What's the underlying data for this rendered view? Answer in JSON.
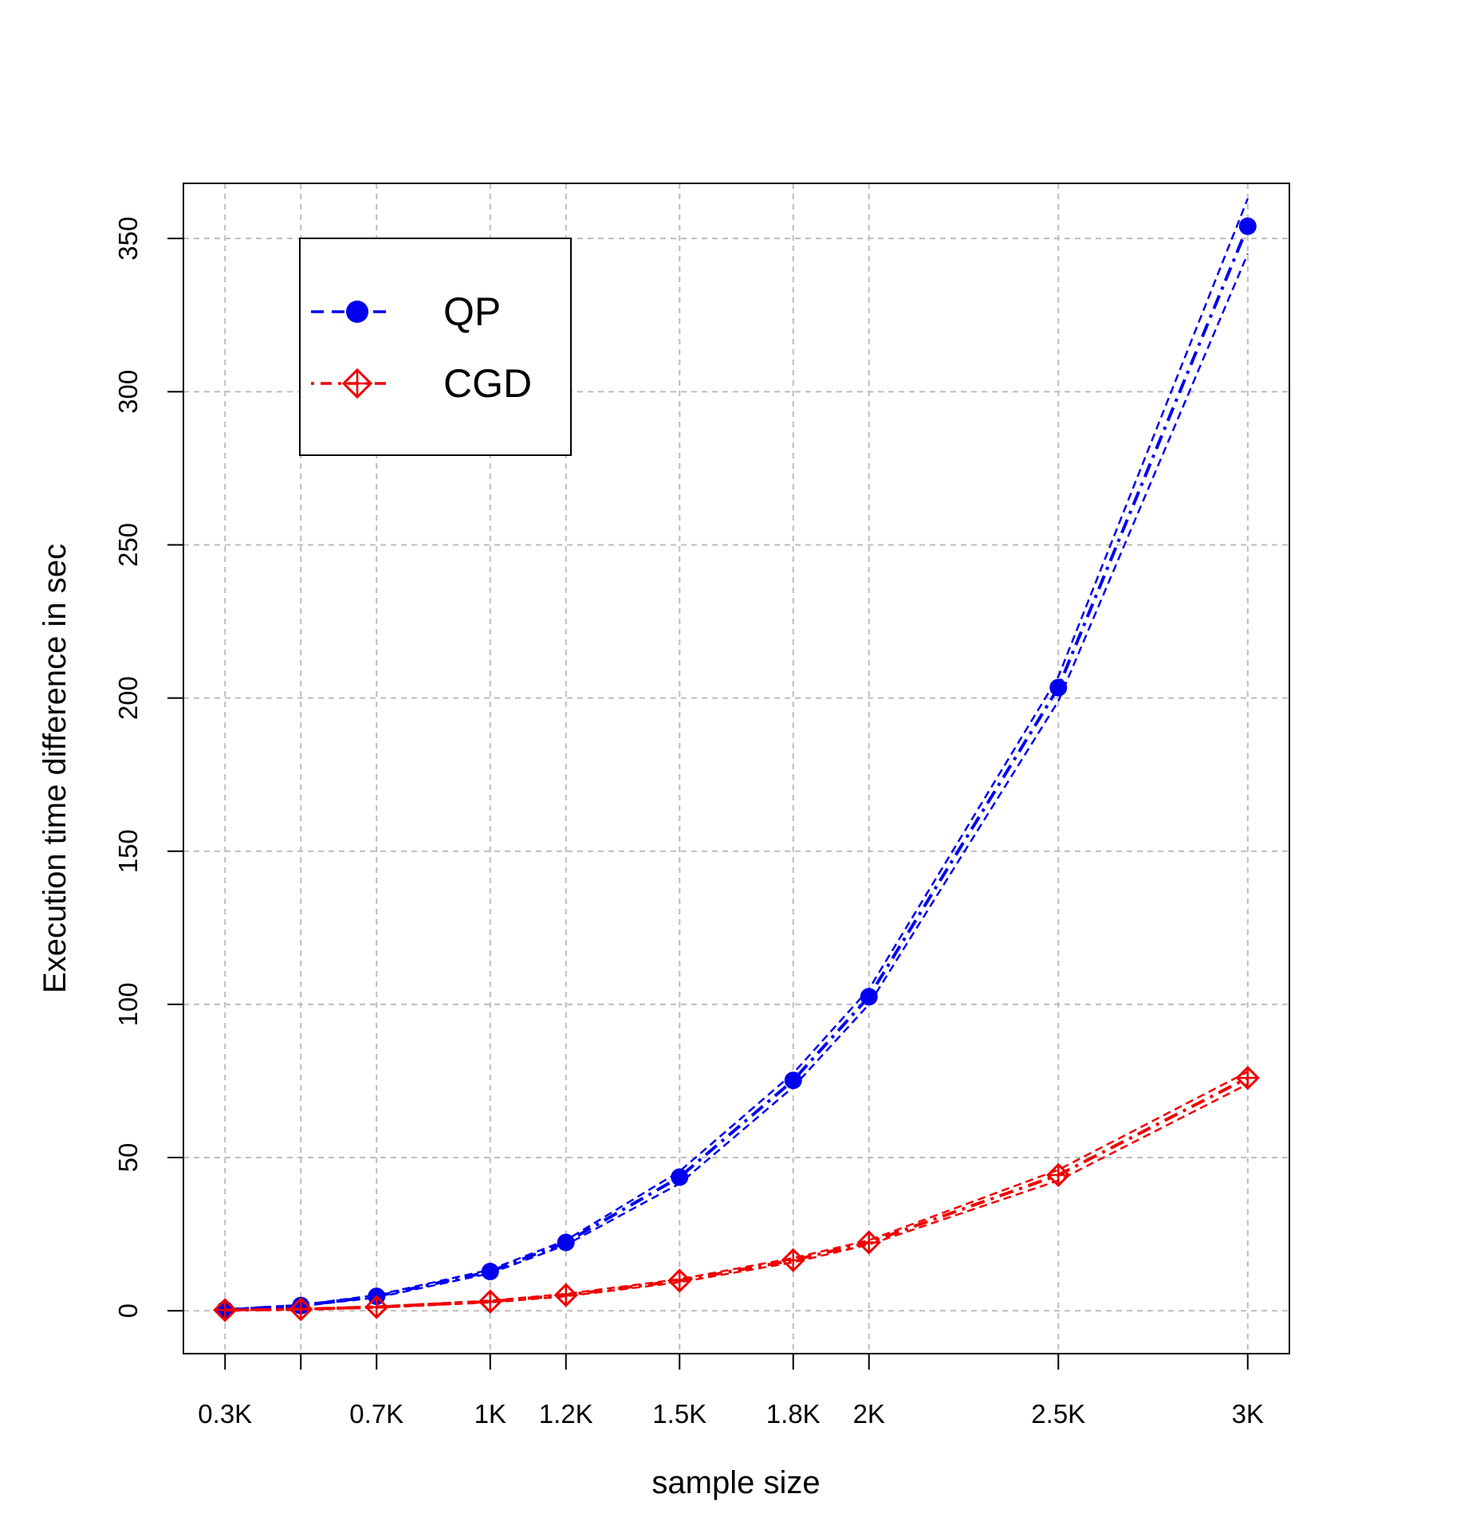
{
  "chart_data": {
    "type": "line",
    "xlabel": "sample size",
    "ylabel": "Execution time difference in sec",
    "xlim": [
      190,
      3110
    ],
    "ylim": [
      -14,
      368
    ],
    "x_ticks": [
      {
        "value": 300,
        "label": "0.3K"
      },
      {
        "value": 500,
        "label": ""
      },
      {
        "value": 700,
        "label": "0.7K"
      },
      {
        "value": 1000,
        "label": "1K"
      },
      {
        "value": 1200,
        "label": "1.2K"
      },
      {
        "value": 1500,
        "label": "1.5K"
      },
      {
        "value": 1800,
        "label": "1.8K"
      },
      {
        "value": 2000,
        "label": "2K"
      },
      {
        "value": 2500,
        "label": "2.5K"
      },
      {
        "value": 3000,
        "label": "3K"
      }
    ],
    "y_ticks": [
      0,
      50,
      100,
      150,
      200,
      250,
      300,
      350
    ],
    "grid": true,
    "legend_position": "top-left",
    "series": [
      {
        "name": "QP",
        "color": "#0000ee",
        "marker": "filled-circle",
        "x": [
          300,
          500,
          700,
          1000,
          1200,
          1500,
          1800,
          2000,
          2500,
          3000
        ],
        "values": [
          0.3,
          1.7,
          4.7,
          12.8,
          22.3,
          43.6,
          75.2,
          102.5,
          203.4,
          354.0
        ],
        "lower": [
          0.2,
          1.5,
          4.3,
          12.2,
          21.5,
          41.5,
          73.0,
          100.0,
          199.0,
          345.0
        ],
        "upper": [
          0.4,
          1.9,
          5.1,
          13.4,
          23.0,
          45.5,
          77.5,
          105.0,
          207.0,
          363.0
        ]
      },
      {
        "name": "CGD",
        "color": "#ee0000",
        "marker": "diamond-plus",
        "x": [
          300,
          500,
          700,
          1000,
          1200,
          1500,
          1800,
          2000,
          2500,
          3000
        ],
        "values": [
          0.2,
          0.5,
          1.2,
          3.0,
          5.1,
          9.8,
          16.5,
          22.3,
          44.3,
          76.0
        ],
        "lower": [
          0.1,
          0.4,
          1.0,
          2.7,
          4.7,
          9.3,
          15.8,
          21.6,
          42.5,
          74.0
        ],
        "upper": [
          0.3,
          0.6,
          1.4,
          3.3,
          5.5,
          10.3,
          17.2,
          23.0,
          46.0,
          78.0
        ]
      }
    ]
  }
}
